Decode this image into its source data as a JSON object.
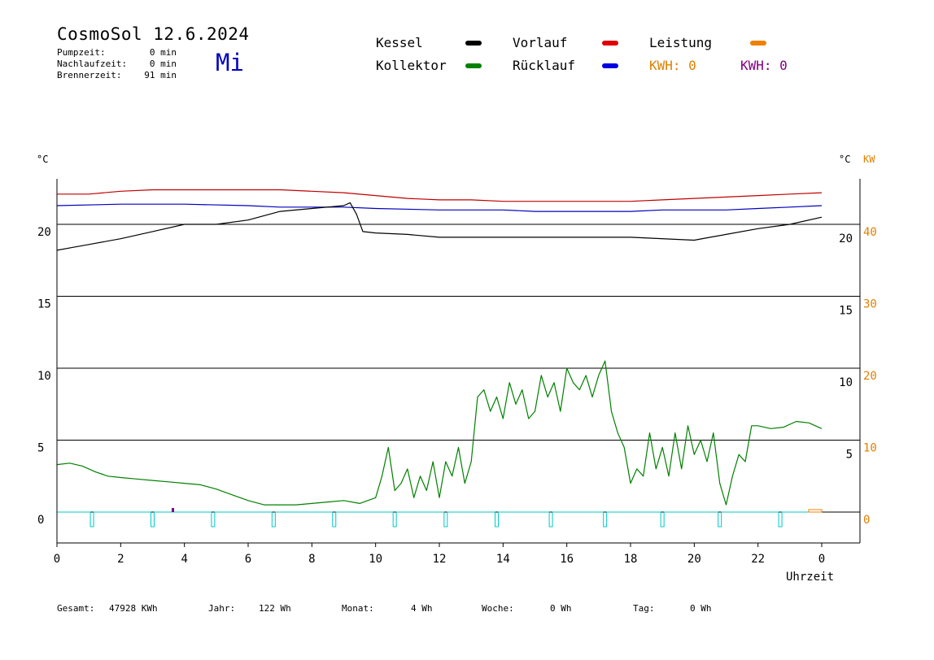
{
  "header": {
    "title": "CosmoSol 12.6.2024",
    "day": "Mi",
    "stats": [
      {
        "label": "Pumpzeit:",
        "value": "0 min"
      },
      {
        "label": "Nachlaufzeit:",
        "value": "0 min"
      },
      {
        "label": "Brennerzeit:",
        "value": "91 min"
      }
    ]
  },
  "legend": {
    "items": [
      {
        "label": "Kessel",
        "color": "#000000"
      },
      {
        "label": "Vorlauf",
        "color": "#e00000"
      },
      {
        "label": "Leistung",
        "color": "#f08000"
      },
      {
        "label": "Kollektor",
        "color": "#008000"
      },
      {
        "label": "Rücklauf",
        "color": "#0000e0"
      }
    ],
    "kwh_orange": "KWH: 0",
    "kwh_purple": "KWH: 0",
    "kwh_orange_color": "#e08000",
    "kwh_purple_color": "#800080"
  },
  "footer": {
    "gesamt_label": "Gesamt:",
    "gesamt_value": "47928 KWh",
    "jahr_label": "Jahr:",
    "jahr_value": "122 Wh",
    "monat_label": "Monat:",
    "monat_value": "4 Wh",
    "woche_label": "Woche:",
    "woche_value": "0 Wh",
    "tag_label": "Tag:",
    "tag_value": "0 Wh"
  },
  "chart_data": {
    "type": "line",
    "xlabel": "Uhrzeit",
    "ylabel_left": "°C",
    "ylabel_right_c": "°C",
    "ylabel_right_kw": "KW",
    "xlim": [
      0,
      24
    ],
    "ylim": [
      -1.5,
      23.5
    ],
    "x_ticks": [
      "0",
      "2",
      "4",
      "6",
      "8",
      "10",
      "12",
      "14",
      "16",
      "18",
      "20",
      "22",
      "0"
    ],
    "y_ticks_left": [
      "20",
      "15",
      "10",
      "5",
      "0"
    ],
    "y_ticks_right_c": [
      "20",
      "15",
      "10",
      "5"
    ],
    "y_ticks_right_kw": [
      "40",
      "30",
      "20",
      "10",
      "0"
    ],
    "grid": "horizontal",
    "series": [
      {
        "name": "Vorlauf",
        "color": "#c00000",
        "x": [
          0,
          1,
          2,
          3,
          4,
          5,
          6,
          7,
          8,
          9,
          10,
          11,
          12,
          13,
          14,
          15,
          16,
          17,
          18,
          19,
          20,
          21,
          22,
          23,
          24
        ],
        "y": [
          22.1,
          22.1,
          22.3,
          22.4,
          22.4,
          22.4,
          22.4,
          22.4,
          22.3,
          22.2,
          22.0,
          21.8,
          21.7,
          21.7,
          21.6,
          21.6,
          21.6,
          21.6,
          21.6,
          21.7,
          21.8,
          21.9,
          22.0,
          22.1,
          22.2
        ]
      },
      {
        "name": "Rücklauf",
        "color": "#0000c0",
        "x": [
          0,
          2,
          4,
          6,
          7,
          8,
          9,
          10,
          12,
          14,
          15,
          16,
          17,
          18,
          19,
          20,
          21,
          22,
          23,
          24
        ],
        "y": [
          21.3,
          21.4,
          21.4,
          21.3,
          21.2,
          21.2,
          21.2,
          21.1,
          21.0,
          21.0,
          20.9,
          20.9,
          20.9,
          20.9,
          21.0,
          21.0,
          21.0,
          21.1,
          21.2,
          21.3
        ]
      },
      {
        "name": "Kessel",
        "color": "#000000",
        "x": [
          0,
          0.5,
          1,
          2,
          3,
          4,
          5,
          6,
          7,
          8,
          9,
          9.2,
          9.4,
          9.6,
          10,
          11,
          12,
          14,
          16,
          18,
          20,
          20.5,
          21,
          22,
          23,
          24
        ],
        "y": [
          18.2,
          18.4,
          18.6,
          19.0,
          19.5,
          20.0,
          20.0,
          20.3,
          20.9,
          21.1,
          21.3,
          21.5,
          20.7,
          19.5,
          19.4,
          19.3,
          19.1,
          19.1,
          19.1,
          19.1,
          18.9,
          19.1,
          19.3,
          19.7,
          20.0,
          20.5
        ]
      },
      {
        "name": "Kollektor",
        "color": "#008000",
        "x": [
          0,
          0.4,
          0.8,
          1.2,
          1.6,
          2.0,
          2.5,
          3.0,
          3.5,
          4.0,
          4.5,
          5.0,
          5.5,
          6.0,
          6.5,
          7.0,
          7.5,
          8.0,
          8.5,
          9.0,
          9.5,
          10.0,
          10.2,
          10.4,
          10.6,
          10.8,
          11.0,
          11.2,
          11.4,
          11.6,
          11.8,
          12.0,
          12.2,
          12.4,
          12.6,
          12.8,
          13.0,
          13.2,
          13.4,
          13.6,
          13.8,
          14.0,
          14.2,
          14.4,
          14.6,
          14.8,
          15.0,
          15.2,
          15.4,
          15.6,
          15.8,
          16.0,
          16.2,
          16.4,
          16.6,
          16.8,
          17.0,
          17.2,
          17.4,
          17.6,
          17.8,
          18.0,
          18.2,
          18.4,
          18.6,
          18.8,
          19.0,
          19.2,
          19.4,
          19.6,
          19.8,
          20.0,
          20.2,
          20.4,
          20.6,
          20.8,
          21.0,
          21.2,
          21.4,
          21.6,
          21.8,
          22.0,
          22.4,
          22.8,
          23.2,
          23.6,
          24.0
        ],
        "y": [
          3.3,
          3.4,
          3.2,
          2.8,
          2.5,
          2.4,
          2.3,
          2.2,
          2.1,
          2.0,
          1.9,
          1.6,
          1.2,
          0.8,
          0.5,
          0.5,
          0.5,
          0.6,
          0.7,
          0.8,
          0.6,
          1.0,
          2.5,
          4.5,
          1.5,
          2.0,
          3.0,
          1.0,
          2.5,
          1.5,
          3.5,
          1.0,
          3.5,
          2.5,
          4.5,
          2.0,
          3.5,
          8.0,
          8.5,
          7.0,
          8.0,
          6.5,
          9.0,
          7.5,
          8.5,
          6.5,
          7.0,
          9.5,
          8.0,
          9.0,
          7.0,
          10.0,
          9.0,
          8.5,
          9.5,
          8.0,
          9.5,
          10.5,
          7.0,
          5.5,
          4.5,
          2.0,
          3.0,
          2.5,
          5.5,
          3.0,
          4.5,
          2.5,
          5.5,
          3.0,
          6.0,
          4.0,
          5.0,
          3.5,
          5.5,
          2.0,
          0.5,
          2.5,
          4.0,
          3.5,
          6.0,
          6.0,
          5.8,
          5.9,
          6.3,
          6.2,
          5.8
        ]
      },
      {
        "name": "Leistung",
        "color": "#00c8c8",
        "x": [
          0,
          1.1,
          3.0,
          4.9,
          6.8,
          8.7,
          10.6,
          12.2,
          13.8,
          15.5,
          17.2,
          19.0,
          20.8,
          22.7,
          24
        ],
        "y": [
          0,
          -1,
          -1,
          -1,
          -1,
          -1,
          -1,
          -1,
          -1,
          -1,
          -1,
          -1,
          -1,
          -1,
          0
        ]
      }
    ]
  }
}
